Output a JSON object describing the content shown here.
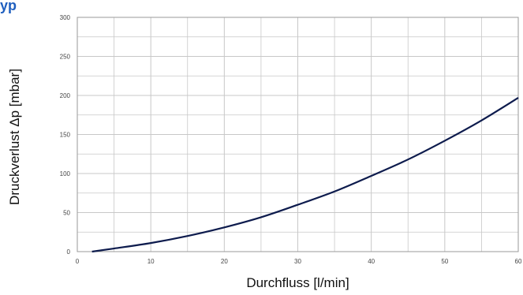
{
  "header_fragment": "yp",
  "colors": {
    "line": "#0d1b4d",
    "grid": "#c8c8c8",
    "frame": "#9a9a9a",
    "header": "#1f5fbf"
  },
  "chart_data": {
    "type": "line",
    "title": "",
    "xlabel": "Durchfluss [l/min]",
    "ylabel": "Druckverlust Δp [mbar]",
    "xlim": [
      0,
      60
    ],
    "ylim": [
      0,
      300
    ],
    "x_ticks": [
      0,
      10,
      20,
      30,
      40,
      50,
      60
    ],
    "y_ticks": [
      0,
      50,
      100,
      150,
      200,
      250,
      300
    ],
    "x_minor_step": 5,
    "y_minor_step": 25,
    "grid": true,
    "series": [
      {
        "x": [
          2,
          5,
          10,
          15,
          20,
          25,
          30,
          35,
          40,
          45,
          50,
          55,
          60
        ],
        "y": [
          0,
          4,
          11,
          20,
          31,
          44,
          60,
          77,
          97,
          118,
          142,
          168,
          197
        ]
      }
    ]
  }
}
